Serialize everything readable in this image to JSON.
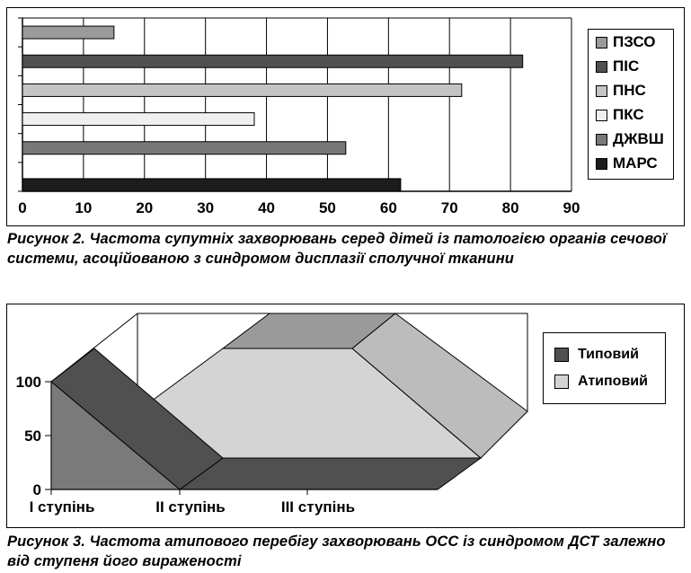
{
  "chart_data": [
    {
      "type": "bar",
      "orientation": "horizontal",
      "categories": [
        "ПЗСО",
        "ПІС",
        "ПНС",
        "ПКС",
        "ДЖВШ",
        "МАРС"
      ],
      "values": [
        15,
        82,
        72,
        38,
        53,
        62
      ],
      "colors": [
        "#9a9a9a",
        "#505050",
        "#c4c4c4",
        "#f0f0f0",
        "#787878",
        "#1c1c1c"
      ],
      "xlim": [
        0,
        90
      ],
      "xticks": [
        "0",
        "10",
        "20",
        "30",
        "40",
        "50",
        "60",
        "70",
        "80",
        "90"
      ],
      "grid": true,
      "legend": "right"
    },
    {
      "type": "area",
      "style": "3d",
      "categories": [
        "I ступінь",
        "II ступінь",
        "III ступінь"
      ],
      "yticks": [
        "0",
        "50",
        "100"
      ],
      "ylim": [
        0,
        100
      ],
      "series": [
        {
          "name": "Типовий",
          "values": [
            100,
            0,
            0
          ],
          "color": "#505050"
        },
        {
          "name": "Атиповий",
          "values": [
            0,
            100,
            100
          ],
          "color": "#d4d4d4"
        }
      ],
      "legend": "right"
    }
  ],
  "captions": {
    "fig2": "Рисунок 2. Частота супутніх захворювань серед дітей із патологією органів сечової системи, асоційованою з синдромом дисплазії сполучної тканини",
    "fig3": "Рисунок 3. Частота атипового перебігу захворювань ОСС із синдромом ДСТ залежно від ступеня його вираженості"
  }
}
